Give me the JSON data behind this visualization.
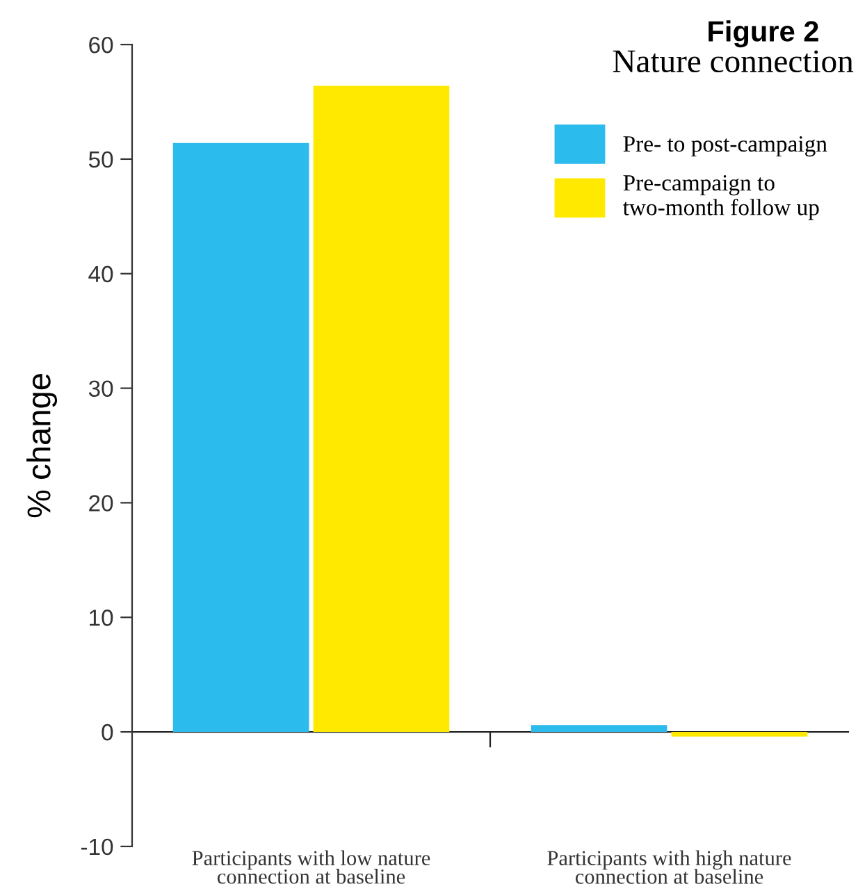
{
  "chart_data": {
    "type": "bar",
    "title": "Figure 2",
    "subtitle": "Nature connection",
    "ylabel": "% change",
    "categories": [
      "Participants with low nature\nconnection at baseline",
      "Participants with high nature\nconnection at baseline"
    ],
    "series": [
      {
        "name": "Pre- to post-campaign",
        "color": "#2bbbec",
        "values": [
          51.4,
          0.6
        ]
      },
      {
        "name": "Pre-campaign to\ntwo-month follow up",
        "color": "#ffe900",
        "values": [
          56.4,
          -0.4
        ]
      }
    ],
    "ylim": [
      -10,
      60
    ],
    "yticks": [
      -10,
      0,
      10,
      20,
      30,
      40,
      50,
      60
    ],
    "legend": "top right"
  }
}
